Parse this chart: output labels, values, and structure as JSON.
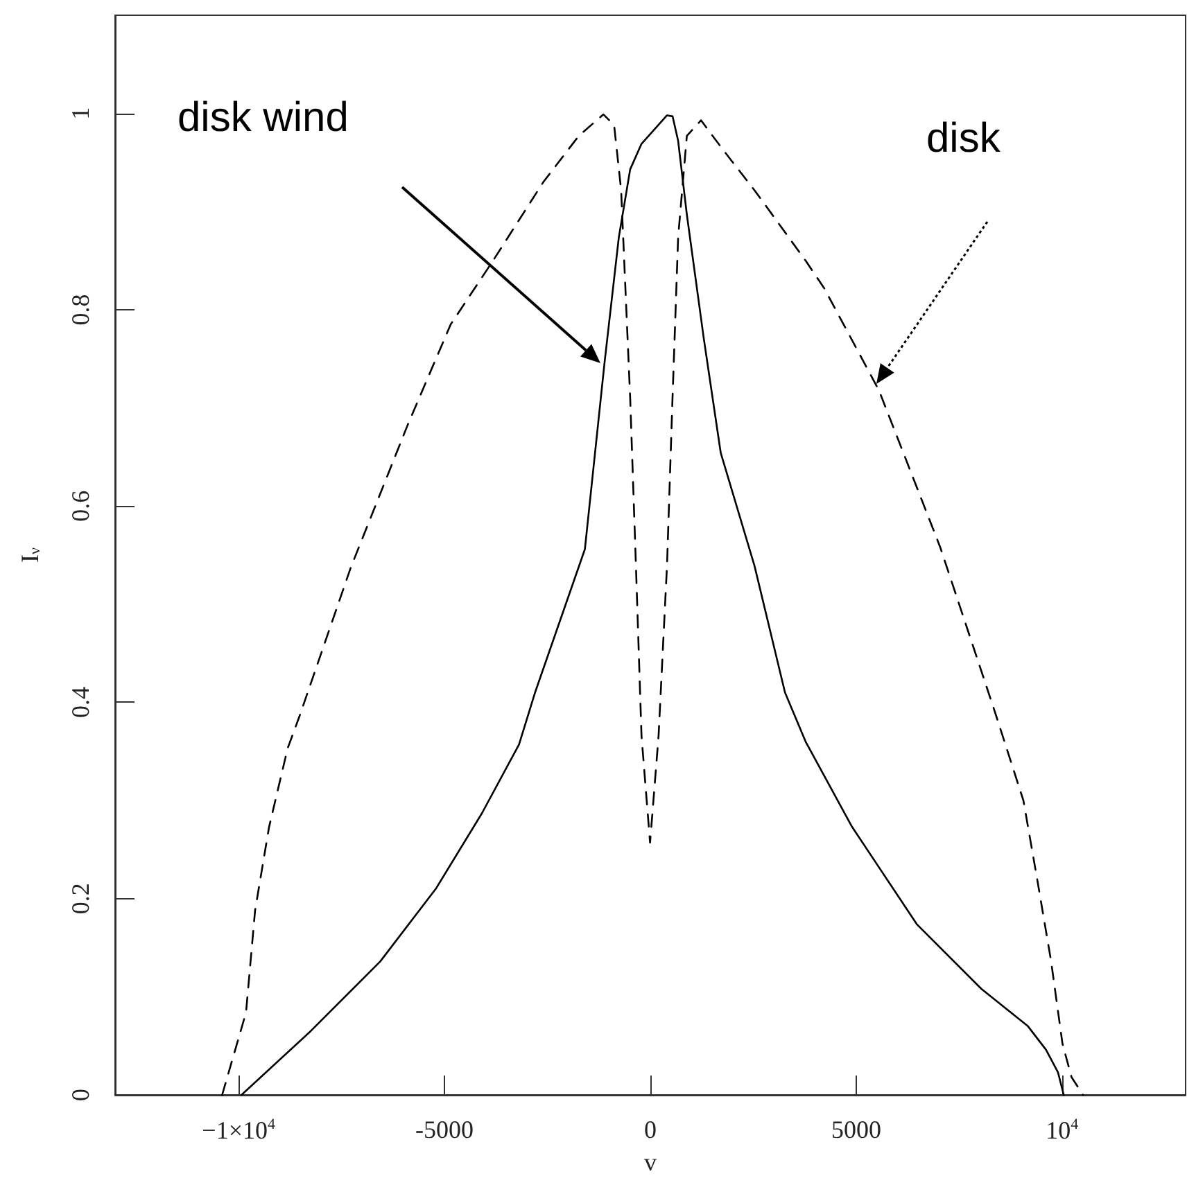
{
  "chart_data": {
    "type": "line",
    "xlabel": "v",
    "ylabel": "I$_{ν}$",
    "xlim": [
      -13000,
      13000
    ],
    "xticks": [
      {
        "value": -10000,
        "label": "−1×10$^{4}$"
      },
      -5000,
      0,
      5000,
      {
        "value": 10000,
        "label": "10$^{4}$"
      }
    ],
    "ylim": [
      0,
      1.1
    ],
    "yticks": [
      0,
      0.2,
      0.4,
      0.6,
      0.8,
      1
    ],
    "grid": false,
    "marker": "none",
    "series": [
      {
        "color": "#000000",
        "line_style": "solid",
        "x": [
          -9930,
          -8250,
          -6560,
          -5210,
          -4090,
          -3190,
          -2800,
          -1590,
          -1110,
          -765,
          -490,
          -215,
          404,
          540,
          675,
          886,
          1300,
          1710,
          2530,
          3270,
          3770,
          4900,
          6470,
          8040,
          9170,
          9610,
          9900,
          10040
        ],
        "values": [
          0,
          0.065,
          0.136,
          0.21,
          0.287,
          0.357,
          0.41,
          0.556,
          0.747,
          0.874,
          0.943,
          0.969,
          0.998,
          0.997,
          0.972,
          0.897,
          0.77,
          0.654,
          0.539,
          0.41,
          0.36,
          0.273,
          0.174,
          0.108,
          0.07,
          0.046,
          0.023,
          0
        ]
      },
      {
        "color": "#000000",
        "line_style": "dashed",
        "x": [
          -10400,
          -9820,
          -9600,
          -9260,
          -8810,
          -8520,
          -7270,
          -5890,
          -4850,
          -3820,
          -2600,
          -1740,
          -1140,
          -880,
          -710,
          -490,
          -350,
          -215,
          -7,
          200,
          404,
          540,
          675,
          886,
          1230,
          1710,
          2560,
          3770,
          4220,
          5550,
          7040,
          8370,
          9060,
          9390,
          9730,
          10010,
          10230,
          10510
        ],
        "values": [
          0,
          0.084,
          0.188,
          0.273,
          0.353,
          0.386,
          0.538,
          0.683,
          0.785,
          0.85,
          0.93,
          0.977,
          0.999,
          0.988,
          0.922,
          0.71,
          0.539,
          0.366,
          0.257,
          0.366,
          0.539,
          0.712,
          0.874,
          0.977,
          0.993,
          0.966,
          0.92,
          0.85,
          0.822,
          0.718,
          0.558,
          0.39,
          0.3,
          0.221,
          0.137,
          0.052,
          0.018,
          0
        ]
      }
    ],
    "annotations": [
      "disk wind",
      "disk"
    ]
  }
}
